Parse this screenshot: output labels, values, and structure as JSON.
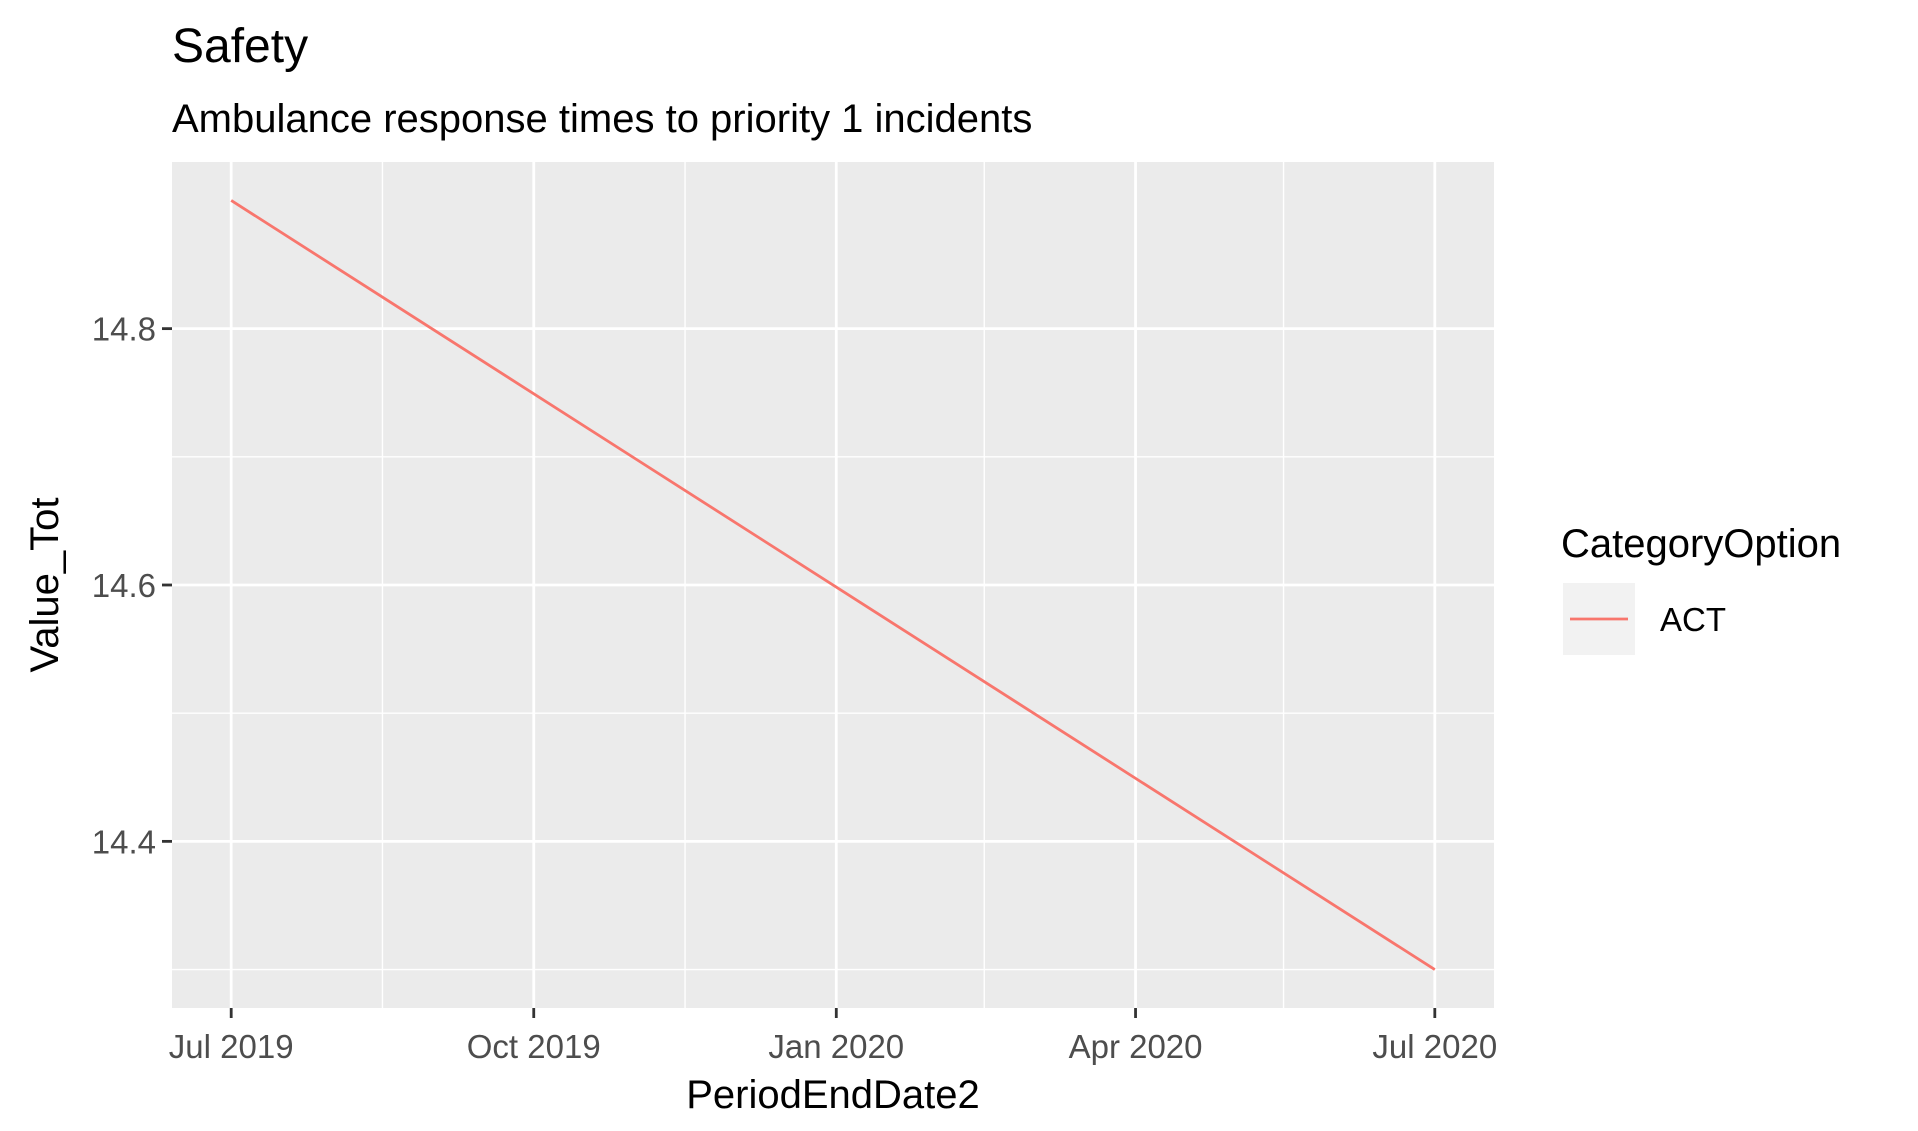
{
  "chart_data": {
    "type": "line",
    "title": "Safety",
    "subtitle": "Ambulance response times to priority 1 incidents",
    "xlabel": "PeriodEndDate2",
    "ylabel": "Value_Tot",
    "x_tick_labels": [
      "Jul 2019",
      "Oct 2019",
      "Jan 2020",
      "Apr 2020",
      "Jul 2020"
    ],
    "x_tick_dates": [
      "2019-07-01",
      "2019-10-01",
      "2020-01-01",
      "2020-04-01",
      "2020-07-01"
    ],
    "x_minor_dates": [
      "2019-08-16",
      "2019-11-16",
      "2020-02-15",
      "2020-05-16"
    ],
    "y_tick_values": [
      14.4,
      14.6,
      14.8
    ],
    "y_tick_labels": [
      "14.4",
      "14.6",
      "14.8"
    ],
    "y_minor_values": [
      14.3,
      14.5,
      14.7
    ],
    "xlim": [
      "2019-06-13",
      "2020-07-19"
    ],
    "ylim": [
      14.27,
      14.93
    ],
    "grid": true,
    "legend": {
      "title": "CategoryOption",
      "position": "right",
      "entries": [
        "ACT"
      ]
    },
    "series": [
      {
        "name": "ACT",
        "color": "#F8766D",
        "x": [
          "2019-07-01",
          "2020-07-01"
        ],
        "y": [
          14.9,
          14.3
        ]
      }
    ]
  },
  "colors": {
    "panel_background": "#EBEBEB",
    "grid_line": "#FFFFFF",
    "tick_mark": "#333333",
    "tick_text": "#4D4D4D",
    "legend_key_background": "#F2F2F2"
  }
}
